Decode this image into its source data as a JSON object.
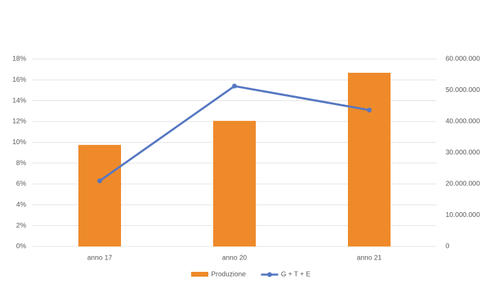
{
  "chart_data": {
    "type": "bar-line",
    "categories": [
      "anno 17",
      "anno 20",
      "anno 21"
    ],
    "series": [
      {
        "name": "Produzione",
        "type": "bar",
        "axis": "y2",
        "color": "#ee8a2a",
        "values": [
          32500000,
          40200000,
          55600000
        ]
      },
      {
        "name": "G + T + E",
        "type": "line",
        "axis": "y",
        "color": "#5677c2",
        "values": [
          6.3,
          15.4,
          13.1
        ]
      }
    ],
    "ylim": [
      0,
      18
    ],
    "yticks": [
      {
        "value": 0,
        "label": "0%"
      },
      {
        "value": 2,
        "label": "2%"
      },
      {
        "value": 4,
        "label": "4%"
      },
      {
        "value": 6,
        "label": "6%"
      },
      {
        "value": 8,
        "label": "8%"
      },
      {
        "value": 10,
        "label": "10%"
      },
      {
        "value": 12,
        "label": "12%"
      },
      {
        "value": 14,
        "label": "14%"
      },
      {
        "value": 16,
        "label": "16%"
      },
      {
        "value": 18,
        "label": "18%"
      }
    ],
    "y2lim": [
      0,
      60000000
    ],
    "y2ticks": [
      0,
      {
        "value": 10000000,
        "label": "10.000.000"
      },
      {
        "value": 20000000,
        "label": "20.000.000"
      },
      {
        "value": 30000000,
        "label": "30.000.000"
      },
      {
        "value": 40000000,
        "label": "40.000.000"
      },
      {
        "value": 50000000,
        "label": "50.000.000"
      },
      {
        "value": 60000000,
        "label": "60.000.000"
      }
    ],
    "grid": true,
    "legend": "bottom"
  }
}
